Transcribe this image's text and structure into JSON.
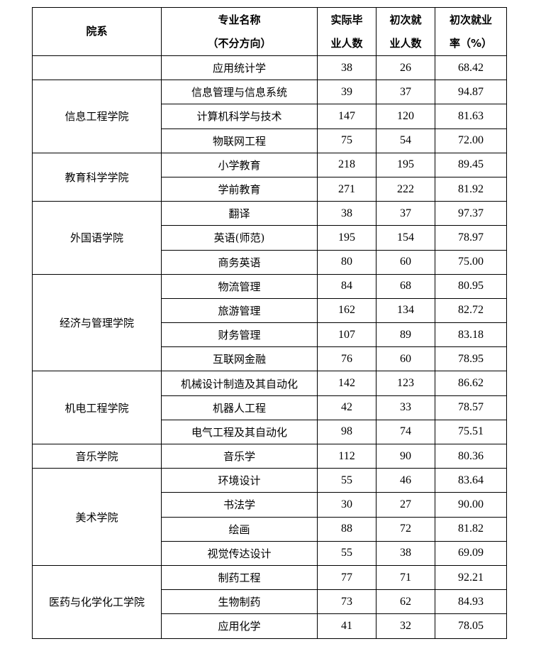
{
  "headers": {
    "dept": "院系",
    "major_l1": "专业名称",
    "major_l2": "（不分方向）",
    "grads_l1": "实际毕",
    "grads_l2": "业人数",
    "emp_l1": "初次就",
    "emp_l2": "业人数",
    "rate_l1": "初次就业",
    "rate_l2": "率（%）"
  },
  "groups": [
    {
      "dept": "",
      "rows": [
        [
          "应用统计学",
          "38",
          "26",
          "68.42"
        ]
      ]
    },
    {
      "dept": "信息工程学院",
      "rows": [
        [
          "信息管理与信息系统",
          "39",
          "37",
          "94.87"
        ],
        [
          "计算机科学与技术",
          "147",
          "120",
          "81.63"
        ],
        [
          "物联网工程",
          "75",
          "54",
          "72.00"
        ]
      ]
    },
    {
      "dept": "教育科学学院",
      "rows": [
        [
          "小学教育",
          "218",
          "195",
          "89.45"
        ],
        [
          "学前教育",
          "271",
          "222",
          "81.92"
        ]
      ]
    },
    {
      "dept": "外国语学院",
      "rows": [
        [
          "翻译",
          "38",
          "37",
          "97.37"
        ],
        [
          "英语(师范)",
          "195",
          "154",
          "78.97"
        ],
        [
          "商务英语",
          "80",
          "60",
          "75.00"
        ]
      ]
    },
    {
      "dept": "经济与管理学院",
      "rows": [
        [
          "物流管理",
          "84",
          "68",
          "80.95"
        ],
        [
          "旅游管理",
          "162",
          "134",
          "82.72"
        ],
        [
          "财务管理",
          "107",
          "89",
          "83.18"
        ],
        [
          "互联网金融",
          "76",
          "60",
          "78.95"
        ]
      ]
    },
    {
      "dept": "机电工程学院",
      "rows": [
        [
          "机械设计制造及其自动化",
          "142",
          "123",
          "86.62"
        ],
        [
          "机器人工程",
          "42",
          "33",
          "78.57"
        ],
        [
          "电气工程及其自动化",
          "98",
          "74",
          "75.51"
        ]
      ]
    },
    {
      "dept": "音乐学院",
      "rows": [
        [
          "音乐学",
          "112",
          "90",
          "80.36"
        ]
      ]
    },
    {
      "dept": "美术学院",
      "rows": [
        [
          "环境设计",
          "55",
          "46",
          "83.64"
        ],
        [
          "书法学",
          "30",
          "27",
          "90.00"
        ],
        [
          "绘画",
          "88",
          "72",
          "81.82"
        ],
        [
          "视觉传达设计",
          "55",
          "38",
          "69.09"
        ]
      ]
    },
    {
      "dept": "医药与化学化工学院",
      "rows": [
        [
          "制药工程",
          "77",
          "71",
          "92.21"
        ],
        [
          "生物制药",
          "73",
          "62",
          "84.93"
        ],
        [
          "应用化学",
          "41",
          "32",
          "78.05"
        ]
      ]
    }
  ]
}
